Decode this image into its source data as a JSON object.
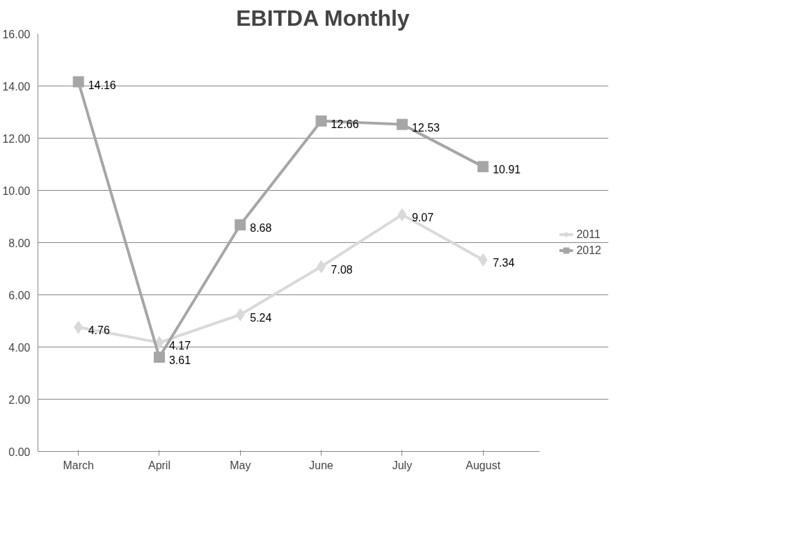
{
  "chart_data": {
    "type": "line",
    "title": "EBITDA Monthly",
    "categories": [
      "March",
      "April",
      "May",
      "June",
      "July",
      "August"
    ],
    "series": [
      {
        "name": "2011",
        "color": "#d9d9d9",
        "marker": "diamond",
        "values": [
          4.76,
          4.17,
          5.24,
          7.08,
          9.07,
          7.34
        ]
      },
      {
        "name": "2012",
        "color": "#a6a6a6",
        "marker": "square",
        "values": [
          14.16,
          3.61,
          8.68,
          12.66,
          12.53,
          10.91
        ]
      }
    ],
    "ylim": [
      0,
      16
    ],
    "yticks": [
      {
        "value": 0,
        "label": "0.00"
      },
      {
        "value": 2,
        "label": "2.00"
      },
      {
        "value": 4,
        "label": "4.00"
      },
      {
        "value": 6,
        "label": "6.00"
      },
      {
        "value": 8,
        "label": "8.00"
      },
      {
        "value": 10,
        "label": "10.00"
      },
      {
        "value": 12,
        "label": "12.00"
      },
      {
        "value": 14,
        "label": "14.00"
      },
      {
        "value": 16,
        "label": "16.00"
      }
    ],
    "grid": "y",
    "legend": "right",
    "data_labels": true,
    "line_style": "solid"
  }
}
